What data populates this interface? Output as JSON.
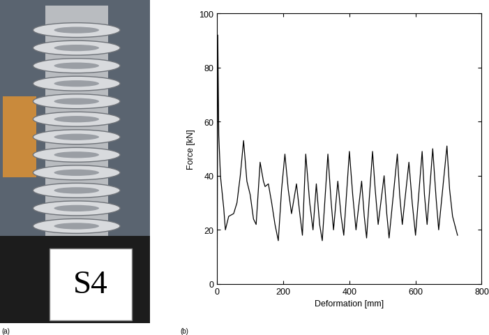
{
  "photo": {
    "panel_label": "(a)",
    "sign": "S4"
  },
  "chart_data": {
    "type": "line",
    "panel_label": "(b)",
    "x_label": "Deformation [mm]",
    "y_label": "Force [kN]",
    "x": [
      0,
      2,
      5,
      10,
      20,
      25,
      35,
      50,
      60,
      70,
      80,
      90,
      100,
      110,
      118,
      130,
      140,
      145,
      155,
      165,
      175,
      185,
      195,
      205,
      215,
      225,
      240,
      250,
      258,
      268,
      280,
      290,
      300,
      310,
      318,
      335,
      345,
      352,
      365,
      375,
      383,
      400,
      410,
      420,
      437,
      445,
      452,
      470,
      478,
      487,
      505,
      513,
      520,
      545,
      552,
      560,
      580,
      590,
      600,
      620,
      627,
      635,
      652,
      662,
      670,
      695,
      703,
      712,
      727
    ],
    "values": [
      0,
      92,
      55,
      40,
      28,
      20,
      25,
      26,
      30,
      40,
      53,
      38,
      33,
      24,
      22,
      45,
      38,
      36,
      37,
      30,
      22,
      16,
      35,
      48,
      35,
      26,
      37,
      26,
      18,
      48,
      30,
      20,
      37,
      22,
      16,
      48,
      30,
      20,
      38,
      25,
      18,
      49,
      33,
      20,
      38,
      25,
      17,
      49,
      35,
      22,
      40,
      26,
      17,
      48,
      33,
      22,
      45,
      30,
      18,
      49,
      33,
      22,
      50,
      32,
      20,
      51,
      35,
      25,
      18
    ],
    "color": "#000000",
    "xlim": [
      0,
      800
    ],
    "xticks": [
      0,
      200,
      400,
      600,
      800
    ],
    "ylim": [
      0,
      100
    ],
    "yticks": [
      0,
      20,
      40,
      60,
      80,
      100
    ],
    "grid": false
  }
}
